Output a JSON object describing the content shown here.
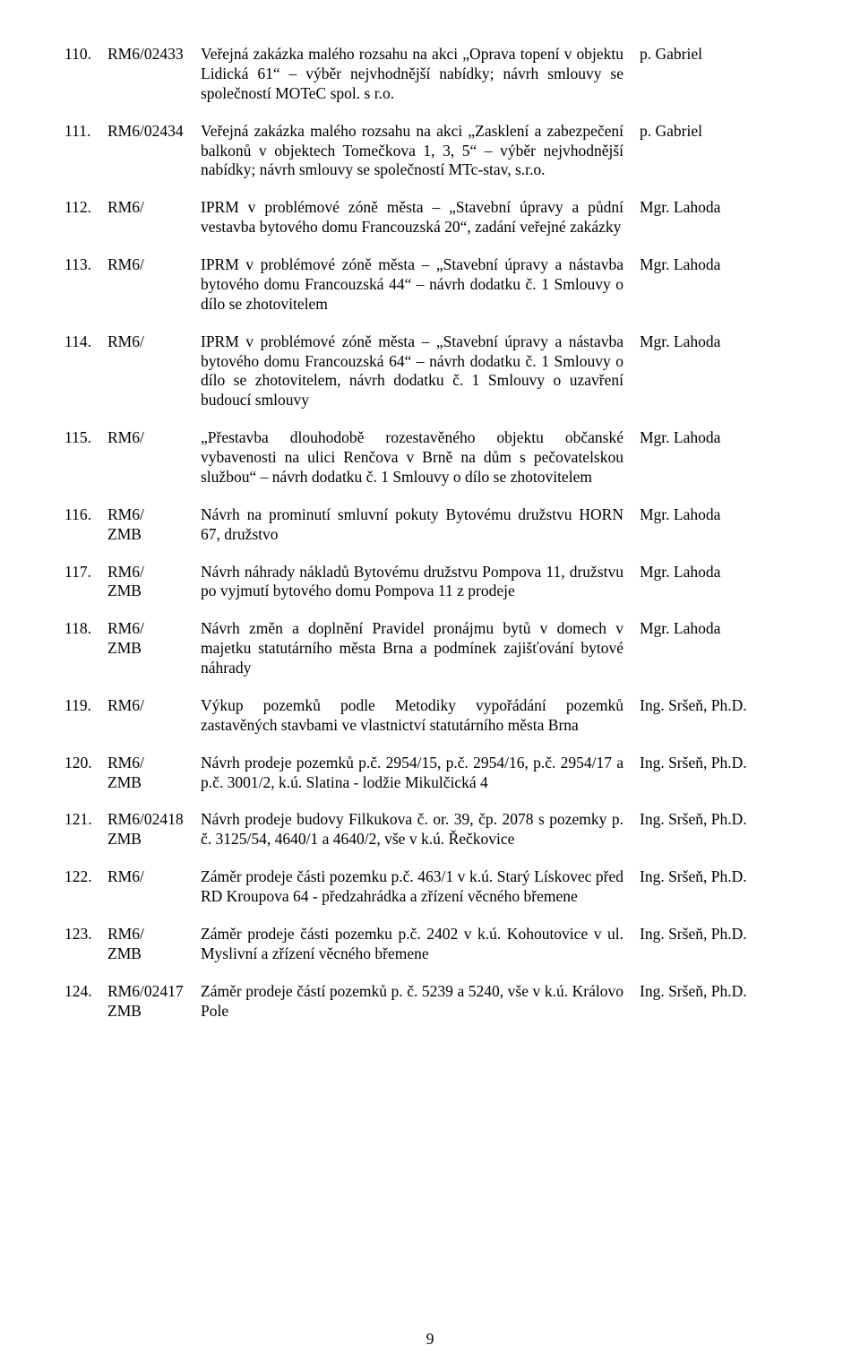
{
  "pageNumber": "9",
  "rows": [
    {
      "num": "110.",
      "ref": "RM6/02433",
      "zmb": "",
      "desc": "Veřejná zakázka malého rozsahu na akci „Oprava topení v objektu Lidická 61“ – výběr nejvhodnější nabídky; návrh smlouvy se společností MOTeC spol. s r.o.",
      "owner": "p. Gabriel"
    },
    {
      "num": "111.",
      "ref": "RM6/02434",
      "zmb": "",
      "desc": "Veřejná zakázka malého rozsahu na akci „Zasklení a zabezpečení balkonů v objektech Tomečkova 1, 3, 5“ – výběr nejvhodnější nabídky; návrh smlouvy se společností MTc-stav, s.r.o.",
      "owner": "p. Gabriel"
    },
    {
      "num": "112.",
      "ref": "RM6/",
      "zmb": "",
      "desc": "IPRM v problémové zóně města – „Stavební úpravy a půdní vestavba bytového domu Francouzská 20“, zadání veřejné zakázky",
      "owner": "Mgr. Lahoda"
    },
    {
      "num": "113.",
      "ref": "RM6/",
      "zmb": "",
      "desc": "IPRM v problémové zóně města – „Stavební úpravy a nástavba bytového domu Francouzská 44“ – návrh dodatku č. 1 Smlouvy o dílo se zhotovitelem",
      "owner": "Mgr. Lahoda"
    },
    {
      "num": "114.",
      "ref": "RM6/",
      "zmb": "",
      "desc": "IPRM v problémové zóně města – „Stavební úpravy a nástavba bytového domu Francouzská 64“ – návrh dodatku č. 1 Smlouvy o dílo se zhotovitelem, návrh dodatku č. 1 Smlouvy o uzavření budoucí smlouvy",
      "owner": "Mgr. Lahoda"
    },
    {
      "num": "115.",
      "ref": "RM6/",
      "zmb": "",
      "desc": "„Přestavba dlouhodobě rozestavěného objektu občanské vybavenosti na ulici Renčova v Brně na dům s pečovatelskou službou“ – návrh dodatku č. 1 Smlouvy o dílo se zhotovitelem",
      "owner": "Mgr. Lahoda"
    },
    {
      "num": "116.",
      "ref": "RM6/",
      "zmb": "ZMB",
      "desc": "Návrh na prominutí smluvní pokuty Bytovému družstvu HORN 67, družstvo",
      "owner": "Mgr. Lahoda"
    },
    {
      "num": "117.",
      "ref": "RM6/",
      "zmb": "ZMB",
      "desc": "Návrh náhrady nákladů Bytovému družstvu Pompova 11, družstvu po vyjmutí bytového domu Pompova 11 z prodeje",
      "owner": "Mgr. Lahoda"
    },
    {
      "num": "118.",
      "ref": "RM6/",
      "zmb": "ZMB",
      "desc": "Návrh změn a doplnění Pravidel pronájmu bytů v domech v majetku statutárního města Brna a podmínek zajišťování bytové náhrady",
      "owner": "Mgr. Lahoda"
    },
    {
      "num": "119.",
      "ref": "RM6/",
      "zmb": "",
      "desc": "Výkup pozemků podle Metodiky vypořádání pozemků zastavěných stavbami ve vlastnictví statutárního města Brna",
      "owner": "Ing. Sršeň, Ph.D."
    },
    {
      "num": "120.",
      "ref": "RM6/",
      "zmb": "ZMB",
      "desc": "Návrh prodeje pozemků p.č. 2954/15, p.č. 2954/16, p.č. 2954/17 a p.č. 3001/2, k.ú. Slatina - lodžie Mikulčická 4",
      "owner": "Ing. Sršeň, Ph.D."
    },
    {
      "num": "121.",
      "ref": "RM6/02418",
      "zmb": "ZMB",
      "desc": "Návrh prodeje budovy Filkukova č. or. 39, čp. 2078 s pozemky p. č. 3125/54, 4640/1 a 4640/2, vše v k.ú. Řečkovice",
      "owner": "Ing. Sršeň, Ph.D."
    },
    {
      "num": "122.",
      "ref": "RM6/",
      "zmb": "",
      "desc": "Záměr prodeje části pozemku p.č. 463/1 v k.ú. Starý Lískovec před RD Kroupova 64 - předzahrádka a zřízení věcného břemene",
      "owner": "Ing. Sršeň, Ph.D."
    },
    {
      "num": "123.",
      "ref": "RM6/",
      "zmb": "ZMB",
      "desc": "Záměr prodeje části pozemku p.č. 2402 v k.ú. Kohoutovice v ul. Myslivní a zřízení věcného břemene",
      "owner": "Ing. Sršeň, Ph.D."
    },
    {
      "num": "124.",
      "ref": "RM6/02417",
      "zmb": "ZMB",
      "desc": "Záměr prodeje částí pozemků p. č. 5239 a 5240, vše v k.ú. Královo Pole",
      "owner": "Ing. Sršeň, Ph.D."
    }
  ]
}
